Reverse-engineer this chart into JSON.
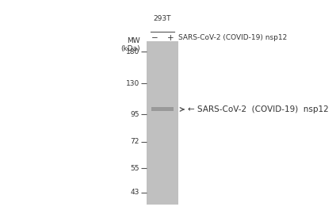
{
  "white_bg": "#ffffff",
  "gel_color": "#c0c0c0",
  "band_color": "#999999",
  "line_color": "#555555",
  "text_color": "#333333",
  "cell_line_label": "293T",
  "col_minus_label": "−",
  "col_plus_label": "+",
  "header_label": "SARS-CoV-2 (COVID-19) nsp12",
  "mw_label": "MW\n(kDa)",
  "marker_labels": [
    "180",
    "130",
    "95",
    "72",
    "55",
    "43"
  ],
  "marker_kda": [
    180,
    130,
    95,
    72,
    55,
    43
  ],
  "band_label": "← SARS-CoV-2  (COVID-19)  nsp12",
  "band_kda": 100,
  "font_size_small": 6.5,
  "font_size_marker": 6.5,
  "font_size_header": 6.5,
  "font_size_band_label": 7.5
}
